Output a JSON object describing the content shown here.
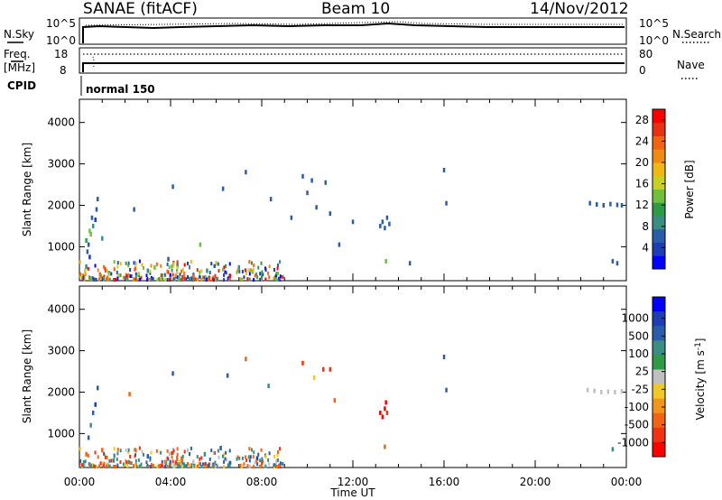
{
  "header": {
    "station": "SANAE (fitACF)",
    "beam": "Beam 10",
    "date": "14/Nov/2012"
  },
  "labels": {
    "n_sky": "N.Sky",
    "n_search": "N.Search",
    "freq": "Freq.",
    "freq_unit": "[MHz]",
    "nave": "Nave",
    "cpid": "CPID",
    "cpid_value": "normal 150",
    "sky_tick_hi": "10^5",
    "sky_tick_lo": "10^0",
    "search_tick_hi": "10^5",
    "search_tick_lo": "10^0",
    "freq_tick_hi": "18",
    "freq_tick_lo": "8",
    "nave_tick_hi": "80",
    "nave_tick_lo": "0"
  },
  "colors": {
    "power": [
      "#0000ff",
      "#1e3cb4",
      "#2a5ca8",
      "#3b8c82",
      "#2e9a46",
      "#70c040",
      "#c8d028",
      "#f0b814",
      "#f08c14",
      "#f06414",
      "#e63214",
      "#ff0000"
    ],
    "velocity": [
      "#ff0000",
      "#f03214",
      "#f06414",
      "#f0961e",
      "#f0c828",
      "#c0c0c0",
      "#2e9a46",
      "#3b8c82",
      "#2a5ca8",
      "#1e3cb4",
      "#0000ff"
    ]
  },
  "chart_data": [
    {
      "type": "line",
      "panel": "N.Sky / N.Search",
      "x": [
        "00:00",
        "04:00",
        "08:00",
        "12:00",
        "16:00",
        "20:00",
        "00:00"
      ],
      "left_axis": {
        "label": "N.Sky",
        "ticks": [
          "10^0",
          "10^5"
        ]
      },
      "right_axis": {
        "label": "N.Search",
        "ticks": [
          "10^0",
          "10^5"
        ]
      },
      "legend": [
        "N.Sky",
        "N.Search"
      ]
    },
    {
      "type": "line",
      "panel": "Freq / Nave",
      "left_axis": {
        "label": "Freq. [MHz]",
        "ticks": [
          8,
          18
        ]
      },
      "right_axis": {
        "label": "Nave",
        "ticks": [
          0,
          80
        ]
      },
      "legend": [
        "Nave"
      ]
    },
    {
      "type": "heatmap",
      "panel": "Power",
      "xlabel": "",
      "ylabel": "Slant Range [km]",
      "xlim": [
        0,
        24
      ],
      "ylim": [
        180,
        4560
      ],
      "x_ticks": [
        "00:00",
        "04:00",
        "08:00",
        "12:00",
        "16:00",
        "20:00",
        "00:00"
      ],
      "y_ticks": [
        1000,
        2000,
        3000,
        4000
      ],
      "colorbar": {
        "label": "Power [dB]",
        "ticks": [
          4,
          8,
          12,
          16,
          20,
          24,
          28
        ],
        "range": [
          0,
          30
        ]
      },
      "points": [
        {
          "t": 0.15,
          "r": 300,
          "v": 20
        },
        {
          "t": 0.2,
          "r": 260,
          "v": 26
        },
        {
          "t": 0.25,
          "r": 420,
          "v": 16
        },
        {
          "t": 0.3,
          "r": 520,
          "v": 8
        },
        {
          "t": 0.35,
          "r": 880,
          "v": 6
        },
        {
          "t": 0.4,
          "r": 1050,
          "v": 6
        },
        {
          "t": 0.45,
          "r": 750,
          "v": 4
        },
        {
          "t": 0.5,
          "r": 1300,
          "v": 13
        },
        {
          "t": 0.55,
          "r": 1700,
          "v": 6
        },
        {
          "t": 0.6,
          "r": 1500,
          "v": 8
        },
        {
          "t": 0.7,
          "r": 1650,
          "v": 4
        },
        {
          "t": 0.75,
          "r": 1900,
          "v": 6
        },
        {
          "t": 0.8,
          "r": 2150,
          "v": 5
        },
        {
          "t": 0.3,
          "r": 1150,
          "v": 12
        },
        {
          "t": 0.45,
          "r": 1380,
          "v": 14
        },
        {
          "t": 1.0,
          "r": 1200,
          "v": 8
        },
        {
          "t": 0.9,
          "r": 330,
          "v": 24
        },
        {
          "t": 1.3,
          "r": 360,
          "v": 12
        },
        {
          "t": 1.7,
          "r": 300,
          "v": 16
        },
        {
          "t": 2.1,
          "r": 270,
          "v": 20
        },
        {
          "t": 2.4,
          "r": 1900,
          "v": 6
        },
        {
          "t": 2.6,
          "r": 320,
          "v": 10
        },
        {
          "t": 3.0,
          "r": 420,
          "v": 8
        },
        {
          "t": 3.3,
          "r": 500,
          "v": 14
        },
        {
          "t": 3.6,
          "r": 300,
          "v": 26
        },
        {
          "t": 3.9,
          "r": 700,
          "v": 6
        },
        {
          "t": 4.1,
          "r": 2450,
          "v": 6
        },
        {
          "t": 4.3,
          "r": 550,
          "v": 12
        },
        {
          "t": 4.6,
          "r": 350,
          "v": 20
        },
        {
          "t": 5.0,
          "r": 300,
          "v": 24
        },
        {
          "t": 5.3,
          "r": 1050,
          "v": 14
        },
        {
          "t": 5.6,
          "r": 420,
          "v": 8
        },
        {
          "t": 6.0,
          "r": 600,
          "v": 16
        },
        {
          "t": 6.3,
          "r": 2400,
          "v": 6
        },
        {
          "t": 6.6,
          "r": 300,
          "v": 20
        },
        {
          "t": 7.0,
          "r": 500,
          "v": 8
        },
        {
          "t": 7.3,
          "r": 2800,
          "v": 6
        },
        {
          "t": 7.6,
          "r": 400,
          "v": 14
        },
        {
          "t": 8.0,
          "r": 300,
          "v": 16
        },
        {
          "t": 8.4,
          "r": 2150,
          "v": 6
        },
        {
          "t": 8.6,
          "r": 260,
          "v": 10
        },
        {
          "t": 9.3,
          "r": 1700,
          "v": 6
        },
        {
          "t": 9.8,
          "r": 2700,
          "v": 6
        },
        {
          "t": 10.0,
          "r": 2300,
          "v": 6
        },
        {
          "t": 10.2,
          "r": 2600,
          "v": 6
        },
        {
          "t": 10.4,
          "r": 1950,
          "v": 6
        },
        {
          "t": 10.8,
          "r": 2550,
          "v": 6
        },
        {
          "t": 11.0,
          "r": 1800,
          "v": 6
        },
        {
          "t": 11.4,
          "r": 1050,
          "v": 6
        },
        {
          "t": 12.0,
          "r": 1600,
          "v": 6
        },
        {
          "t": 13.2,
          "r": 1500,
          "v": 6
        },
        {
          "t": 13.3,
          "r": 1600,
          "v": 6
        },
        {
          "t": 13.4,
          "r": 1450,
          "v": 6
        },
        {
          "t": 13.5,
          "r": 1700,
          "v": 6
        },
        {
          "t": 13.6,
          "r": 1550,
          "v": 6
        },
        {
          "t": 13.45,
          "r": 650,
          "v": 14
        },
        {
          "t": 14.5,
          "r": 600,
          "v": 6
        },
        {
          "t": 16.0,
          "r": 2850,
          "v": 6
        },
        {
          "t": 16.1,
          "r": 2050,
          "v": 6
        },
        {
          "t": 22.4,
          "r": 2050,
          "v": 6
        },
        {
          "t": 22.7,
          "r": 2020,
          "v": 5
        },
        {
          "t": 23.0,
          "r": 2000,
          "v": 6
        },
        {
          "t": 23.3,
          "r": 2030,
          "v": 5
        },
        {
          "t": 23.6,
          "r": 2010,
          "v": 6
        },
        {
          "t": 23.8,
          "r": 2000,
          "v": 5
        },
        {
          "t": 23.4,
          "r": 650,
          "v": 6
        },
        {
          "t": 23.6,
          "r": 600,
          "v": 5
        }
      ]
    },
    {
      "type": "heatmap",
      "panel": "Velocity",
      "xlabel": "Time UT",
      "ylabel": "Slant Range [km]",
      "xlim": [
        0,
        24
      ],
      "ylim": [
        180,
        4560
      ],
      "x_ticks": [
        "00:00",
        "04:00",
        "08:00",
        "12:00",
        "16:00",
        "20:00",
        "00:00"
      ],
      "y_ticks": [
        1000,
        2000,
        3000,
        4000
      ],
      "colorbar": {
        "label": "Velocity [m s^-1]",
        "ticks": [
          "1000",
          "500",
          "100",
          "25",
          "-25",
          "-100",
          "-500",
          "-1000"
        ]
      },
      "points": [
        {
          "t": 0.2,
          "r": 300,
          "v": 100
        },
        {
          "t": 0.3,
          "r": 500,
          "v": -100
        },
        {
          "t": 0.4,
          "r": 900,
          "v": 500
        },
        {
          "t": 0.5,
          "r": 1200,
          "v": 100
        },
        {
          "t": 0.6,
          "r": 1500,
          "v": 500
        },
        {
          "t": 0.7,
          "r": 1700,
          "v": 1000
        },
        {
          "t": 0.8,
          "r": 2100,
          "v": 500
        },
        {
          "t": 1.0,
          "r": 600,
          "v": -100
        },
        {
          "t": 1.5,
          "r": 350,
          "v": 100
        },
        {
          "t": 2.2,
          "r": 1950,
          "v": -100
        },
        {
          "t": 3.0,
          "r": 450,
          "v": 500
        },
        {
          "t": 3.8,
          "r": 300,
          "v": 100
        },
        {
          "t": 4.1,
          "r": 2450,
          "v": 500
        },
        {
          "t": 4.5,
          "r": 350,
          "v": -100
        },
        {
          "t": 5.5,
          "r": 500,
          "v": 100
        },
        {
          "t": 6.2,
          "r": 650,
          "v": 500
        },
        {
          "t": 6.5,
          "r": 2400,
          "v": 500
        },
        {
          "t": 7.3,
          "r": 2800,
          "v": -100
        },
        {
          "t": 7.8,
          "r": 400,
          "v": 1000
        },
        {
          "t": 8.3,
          "r": 2150,
          "v": 100
        },
        {
          "t": 9.8,
          "r": 2700,
          "v": -500
        },
        {
          "t": 10.3,
          "r": 2350,
          "v": -25
        },
        {
          "t": 10.7,
          "r": 2550,
          "v": -500
        },
        {
          "t": 11.0,
          "r": 2550,
          "v": -500
        },
        {
          "t": 11.2,
          "r": 1800,
          "v": -100
        },
        {
          "t": 13.2,
          "r": 1500,
          "v": -1000
        },
        {
          "t": 13.3,
          "r": 1400,
          "v": -1000
        },
        {
          "t": 13.4,
          "r": 1600,
          "v": -1000
        },
        {
          "t": 13.5,
          "r": 1500,
          "v": -500
        },
        {
          "t": 13.45,
          "r": 1750,
          "v": -1000
        },
        {
          "t": 13.4,
          "r": 680,
          "v": -100
        },
        {
          "t": 16.0,
          "r": 2850,
          "v": 500
        },
        {
          "t": 16.1,
          "r": 2050,
          "v": 500
        },
        {
          "t": 22.3,
          "r": 2050,
          "v": 25
        },
        {
          "t": 22.6,
          "r": 2030,
          "v": 25
        },
        {
          "t": 22.9,
          "r": 2000,
          "v": 25
        },
        {
          "t": 23.2,
          "r": 2010,
          "v": 25
        },
        {
          "t": 23.5,
          "r": 2000,
          "v": 25
        },
        {
          "t": 23.8,
          "r": 2020,
          "v": 25
        },
        {
          "t": 23.4,
          "r": 620,
          "v": 100
        }
      ]
    }
  ]
}
